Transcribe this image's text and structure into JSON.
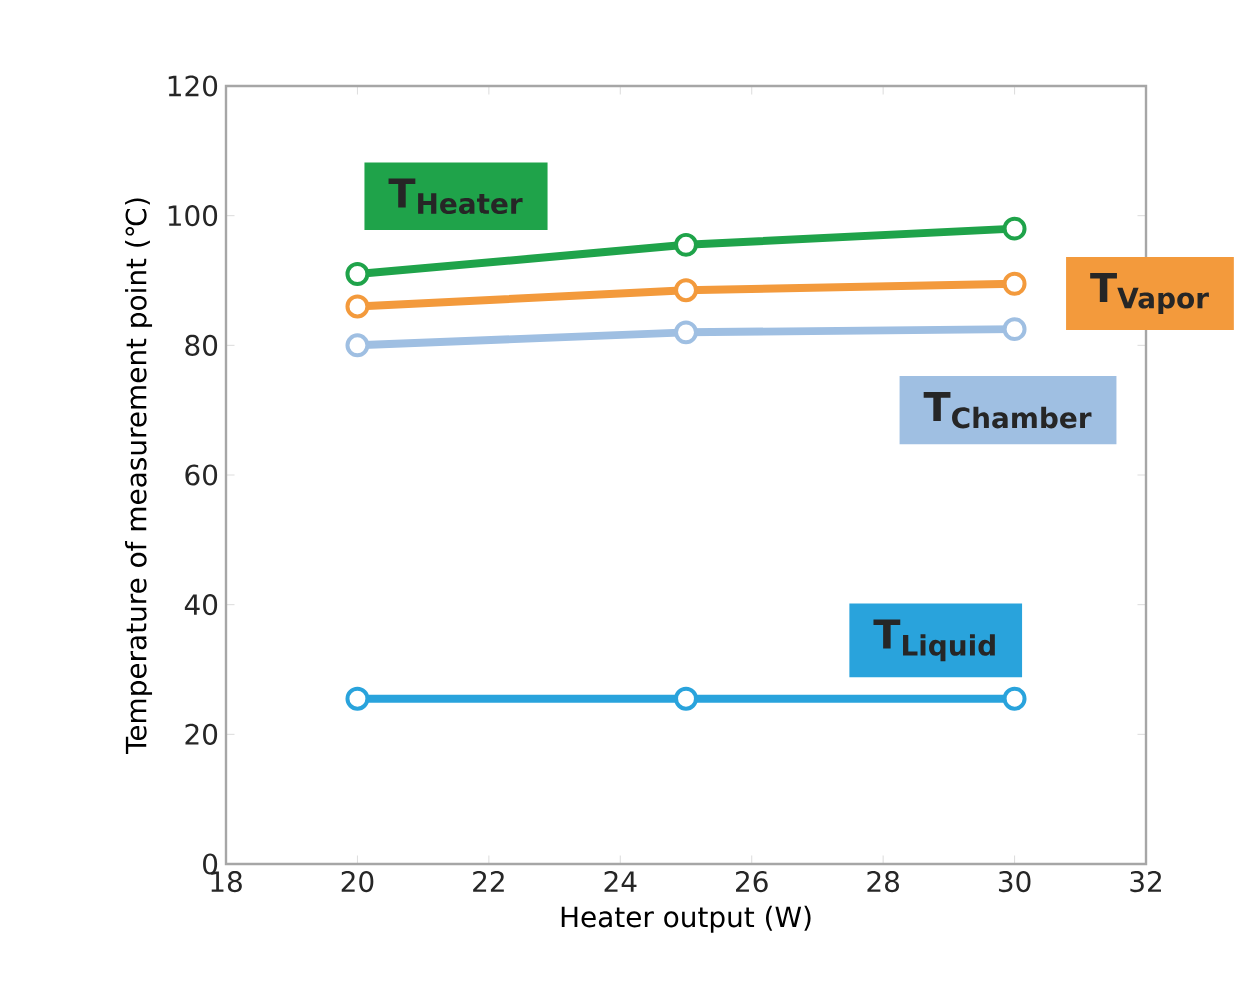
{
  "chart_data": {
    "type": "line",
    "xlabel": "Heater output (W)",
    "ylabel": "Temperature of measurement point (℃)",
    "x": [
      20,
      25,
      30
    ],
    "series": [
      {
        "name": "T$_{Heater}$",
        "color": "#1fa34a",
        "values": [
          91,
          95.5,
          98
        ]
      },
      {
        "name": "T$_{Vapor}$",
        "color": "#f39a3c",
        "values": [
          86,
          88.5,
          89.5
        ]
      },
      {
        "name": "T$_{Chamber}$",
        "color": "#9fbfe2",
        "values": [
          80,
          82,
          82.5
        ]
      },
      {
        "name": "T$_{Liquid}$",
        "color": "#29a3dc",
        "values": [
          25.5,
          25.5,
          25.5
        ]
      }
    ],
    "xlim": [
      18,
      32
    ],
    "xticks": [
      18,
      20,
      22,
      24,
      26,
      28,
      30,
      32
    ],
    "ylim": [
      0,
      120
    ],
    "yticks": [
      0,
      20,
      40,
      60,
      80,
      100,
      120
    ],
    "grid": false,
    "marker": "circle",
    "line_style": "solid"
  }
}
